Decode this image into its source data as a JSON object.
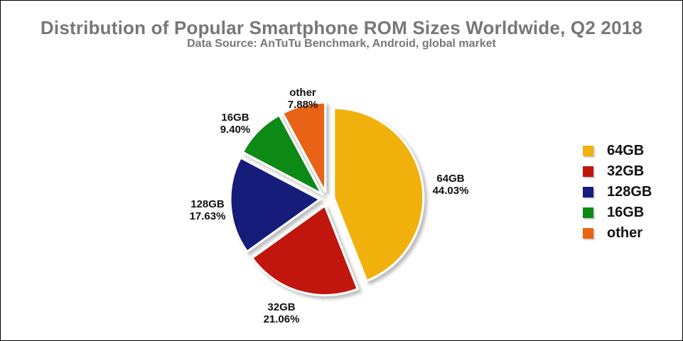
{
  "title": "Distribution of Popular Smartphone ROM Sizes Worldwide, Q2 2018",
  "subtitle": "Data Source: AnTuTu Benchmark, Android, global market",
  "chart_data": {
    "type": "pie",
    "title": "Distribution of Popular Smartphone ROM Sizes Worldwide, Q2 2018",
    "subtitle": "Data Source: AnTuTu Benchmark, Android, global market",
    "legend_position": "right",
    "exploded": true,
    "slices": [
      {
        "name": "64GB",
        "value": 44.03,
        "label": "44.03%",
        "color": "#f0b10f"
      },
      {
        "name": "32GB",
        "value": 21.06,
        "label": "21.06%",
        "color": "#c0150b"
      },
      {
        "name": "128GB",
        "value": 17.63,
        "label": "17.63%",
        "color": "#161c7a"
      },
      {
        "name": "16GB",
        "value": 9.4,
        "label": "9.40%",
        "color": "#0f8a16"
      },
      {
        "name": "other",
        "value": 7.88,
        "label": "7.88%",
        "color": "#e86413"
      }
    ]
  }
}
